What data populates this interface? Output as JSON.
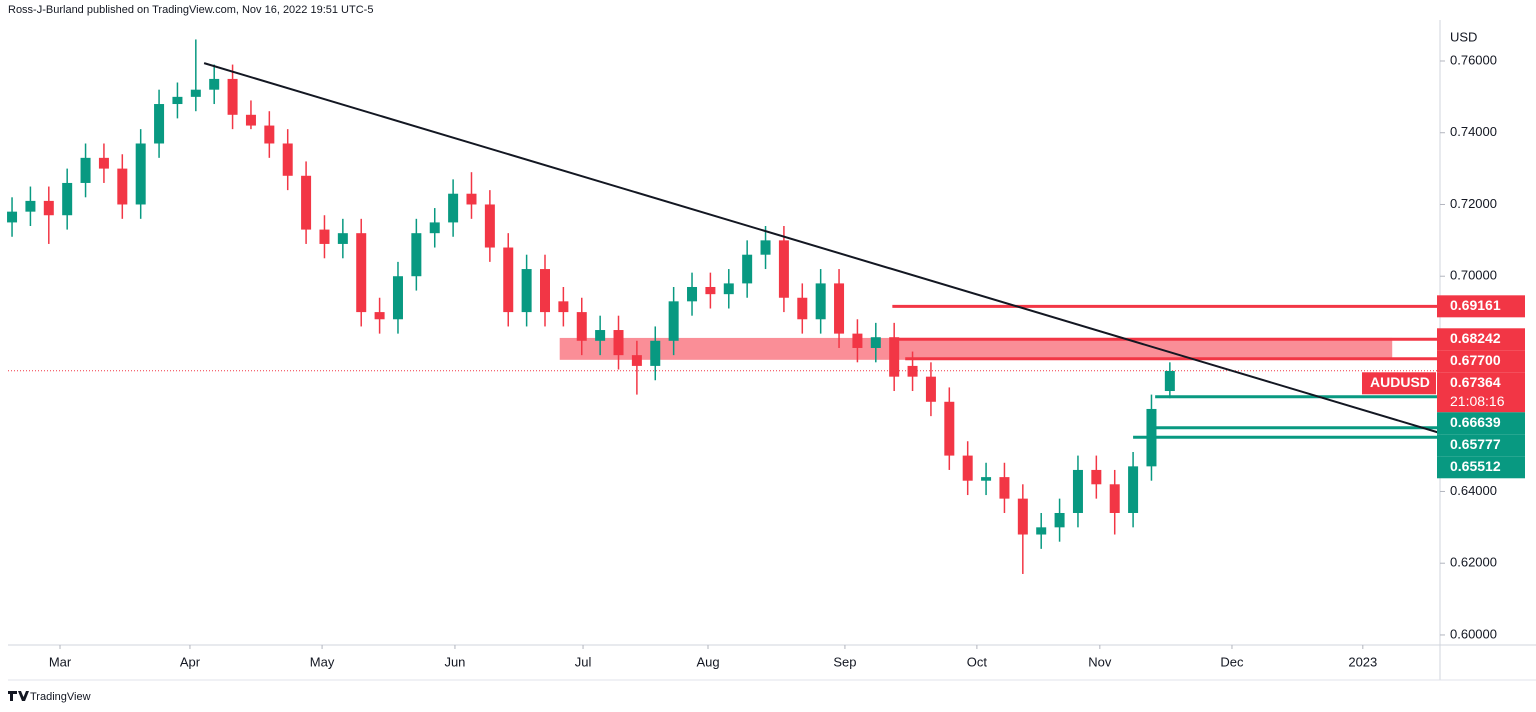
{
  "header": {
    "byline": "Ross-J-Burland published on TradingView.com, Nov 16, 2022 19:51 UTC-5",
    "brand": "TradingView"
  },
  "chart_data": {
    "type": "candlestick",
    "symbol": "AUDUSD",
    "countdown": "21:08:16",
    "y_axis_label": "USD",
    "up_color": "#089981",
    "down_color": "#f23645",
    "open": [
      0.715,
      0.718,
      0.721,
      0.717,
      0.726,
      0.733,
      0.73,
      0.72,
      0.737,
      0.748,
      0.75,
      0.752,
      0.755,
      0.745,
      0.742,
      0.737,
      0.728,
      0.713,
      0.709,
      0.712,
      0.69,
      0.688,
      0.7,
      0.712,
      0.715,
      0.723,
      0.72,
      0.708,
      0.69,
      0.702,
      0.693,
      0.69,
      0.682,
      0.685,
      0.678,
      0.675,
      0.682,
      0.693,
      0.697,
      0.695,
      0.698,
      0.706,
      0.71,
      0.694,
      0.688,
      0.698,
      0.684,
      0.68,
      0.683,
      0.675,
      0.672,
      0.665,
      0.65,
      0.643,
      0.644,
      0.638,
      0.628,
      0.63,
      0.634,
      0.646,
      0.642,
      0.634,
      0.647,
      0.668
    ],
    "high": [
      0.722,
      0.725,
      0.725,
      0.73,
      0.737,
      0.737,
      0.734,
      0.741,
      0.752,
      0.754,
      0.766,
      0.759,
      0.759,
      0.749,
      0.746,
      0.741,
      0.732,
      0.717,
      0.716,
      0.716,
      0.694,
      0.704,
      0.716,
      0.719,
      0.727,
      0.729,
      0.724,
      0.712,
      0.706,
      0.706,
      0.697,
      0.694,
      0.689,
      0.689,
      0.682,
      0.686,
      0.697,
      0.701,
      0.701,
      0.702,
      0.71,
      0.714,
      0.714,
      0.698,
      0.702,
      0.702,
      0.688,
      0.687,
      0.687,
      0.679,
      0.676,
      0.669,
      0.654,
      0.648,
      0.648,
      0.642,
      0.634,
      0.638,
      0.65,
      0.65,
      0.646,
      0.651,
      0.667,
      0.676
    ],
    "low": [
      0.711,
      0.714,
      0.709,
      0.713,
      0.722,
      0.726,
      0.716,
      0.716,
      0.733,
      0.744,
      0.746,
      0.748,
      0.741,
      0.741,
      0.733,
      0.724,
      0.709,
      0.705,
      0.705,
      0.686,
      0.684,
      0.684,
      0.696,
      0.708,
      0.711,
      0.716,
      0.704,
      0.686,
      0.686,
      0.686,
      0.686,
      0.678,
      0.678,
      0.674,
      0.667,
      0.671,
      0.678,
      0.689,
      0.691,
      0.691,
      0.694,
      0.702,
      0.69,
      0.684,
      0.684,
      0.68,
      0.676,
      0.676,
      0.668,
      0.668,
      0.661,
      0.646,
      0.639,
      0.639,
      0.634,
      0.617,
      0.624,
      0.626,
      0.63,
      0.638,
      0.628,
      0.63,
      0.643,
      0.666
    ],
    "close": [
      0.718,
      0.721,
      0.717,
      0.726,
      0.733,
      0.73,
      0.72,
      0.737,
      0.748,
      0.75,
      0.752,
      0.755,
      0.745,
      0.742,
      0.737,
      0.728,
      0.713,
      0.709,
      0.712,
      0.69,
      0.688,
      0.7,
      0.712,
      0.715,
      0.723,
      0.72,
      0.708,
      0.69,
      0.702,
      0.69,
      0.69,
      0.682,
      0.685,
      0.678,
      0.675,
      0.682,
      0.693,
      0.697,
      0.695,
      0.698,
      0.706,
      0.71,
      0.694,
      0.688,
      0.698,
      0.684,
      0.68,
      0.683,
      0.672,
      0.672,
      0.665,
      0.65,
      0.643,
      0.644,
      0.638,
      0.628,
      0.63,
      0.634,
      0.646,
      0.642,
      0.634,
      0.647,
      0.663,
      0.6736
    ],
    "xlim": [
      -0.22,
      77.7
    ],
    "ylim": [
      0.5972,
      0.777
    ],
    "xticks": [
      {
        "value": 2.61,
        "label": "Mar"
      },
      {
        "value": 9.68,
        "label": "Apr"
      },
      {
        "value": 16.87,
        "label": "May"
      },
      {
        "value": 24.1,
        "label": "Jun"
      },
      {
        "value": 31.07,
        "label": "Jul"
      },
      {
        "value": 37.87,
        "label": "Aug"
      },
      {
        "value": 45.32,
        "label": "Sep"
      },
      {
        "value": 52.5,
        "label": "Oct"
      },
      {
        "value": 59.19,
        "label": "Nov"
      },
      {
        "value": 66.38,
        "label": "Dec"
      },
      {
        "value": 73.5,
        "label": "2023"
      }
    ],
    "yticks": [
      {
        "value": 0.76,
        "label": "0.76000"
      },
      {
        "value": 0.74,
        "label": "0.74000"
      },
      {
        "value": 0.72,
        "label": "0.72000"
      },
      {
        "value": 0.7,
        "label": "0.70000"
      },
      {
        "value": 0.64,
        "label": "0.64000"
      },
      {
        "value": 0.62,
        "label": "0.62000"
      },
      {
        "value": 0.6,
        "label": "0.60000"
      }
    ],
    "levels": [
      {
        "value": 0.69161,
        "color": "#f23645",
        "start": 47.9
      },
      {
        "value": 0.68242,
        "color": "#f23645",
        "start": 47.9
      },
      {
        "value": {
          "value": 0.677,
          "label": "0.67700"
        },
        "color": "#f23645",
        "start": 48.6
      },
      {
        "value": 0.66639,
        "color": "#089981",
        "start": 62.2
      },
      {
        "value": 0.65777,
        "color": "#089981",
        "start": 61.8
      },
      {
        "value": 0.65512,
        "color": "#089981",
        "start": 61.0
      }
    ],
    "current_price": 0.67364,
    "zone": {
      "low": 0.6767,
      "high": 0.6828,
      "start": 29.8,
      "end": 75.1,
      "color": "#f7525f"
    },
    "trendline": {
      "x": [
        10.45,
        77.7
      ],
      "y": [
        0.7594,
        0.6563
      ]
    }
  }
}
